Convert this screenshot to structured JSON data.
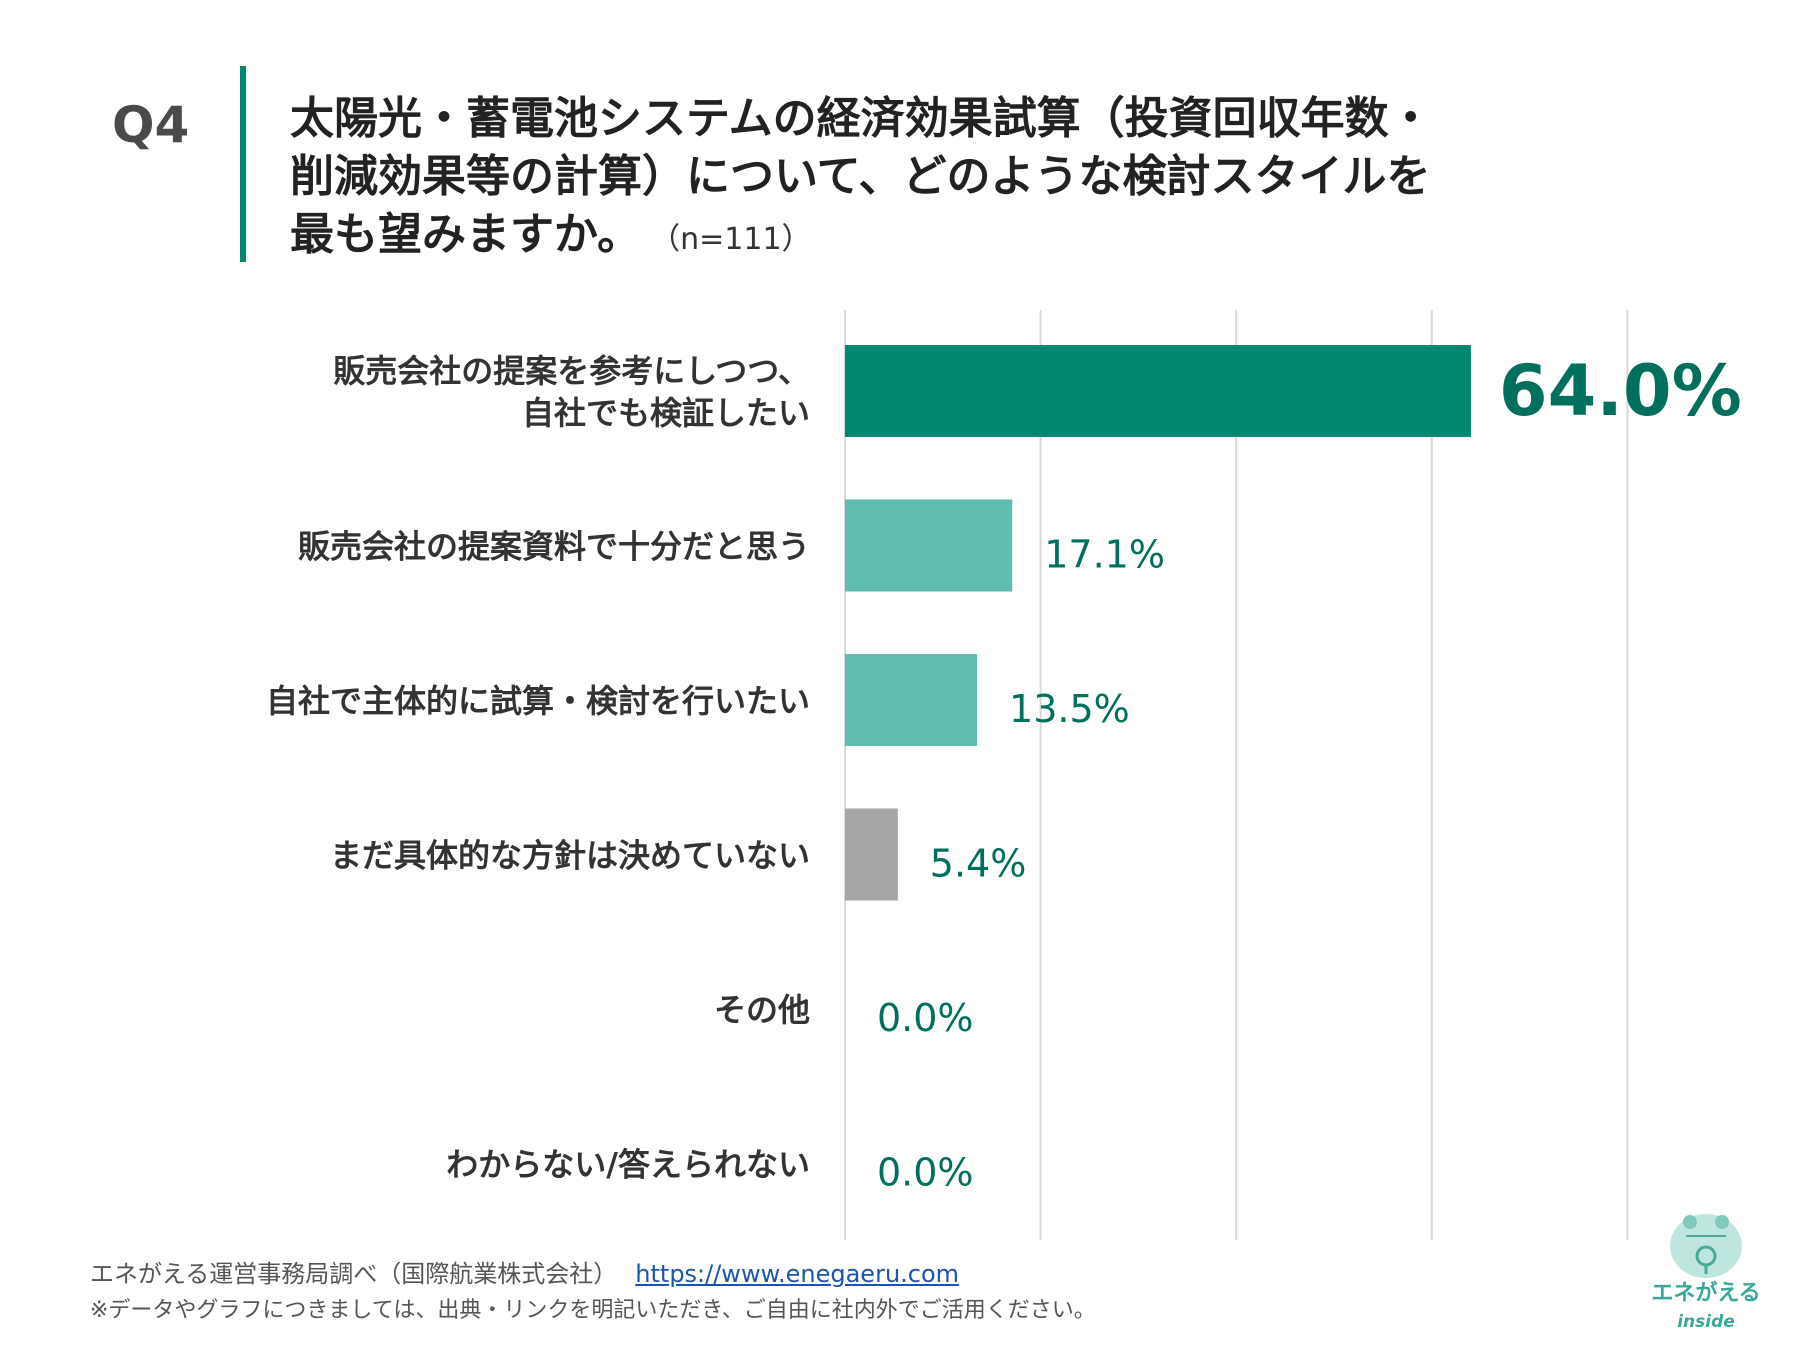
{
  "question": {
    "number": "Q4",
    "title_lines": [
      "太陽光・蓄電池システムの経済効果試算（投資回収年数・",
      "削減効果等の計算）について、どのような検討スタイルを",
      "最も望みますか。"
    ],
    "sample": "（n=111）"
  },
  "chart_data": {
    "type": "bar",
    "orientation": "horizontal",
    "title": "太陽光・蓄電池システムの経済効果試算（投資回収年数・削減効果等の計算）について、どのような検討スタイルを最も望みますか。",
    "categories": [
      [
        "販売会社の提案を参考にしつつ、",
        "自社でも検証したい"
      ],
      [
        "販売会社の提案資料で十分だと思う"
      ],
      [
        "自社で主体的に試算・検討を行いたい"
      ],
      [
        "まだ具体的な方針は決めていない"
      ],
      [
        "その他"
      ],
      [
        "わからない/答えられない"
      ]
    ],
    "values": [
      64.0,
      17.1,
      13.5,
      5.4,
      0.0,
      0.0
    ],
    "labels": [
      "64.0%",
      "17.1%",
      "13.5%",
      "5.4%",
      "0.0%",
      "0.0%"
    ],
    "colors": [
      "#00876f",
      "#5fbcb0",
      "#5fbcb0",
      "#a6a6a6",
      "#5fbcb0",
      "#5fbcb0"
    ],
    "label_color": "#00705c",
    "xlim": [
      0,
      80
    ],
    "grid": true,
    "xlabel": "",
    "ylabel": ""
  },
  "footer": {
    "source": "エネがえる運営事務局調べ（国際航業株式会社）",
    "link": "https://www.enegaeru.com",
    "note": "※データやグラフにつきましては、出典・リンクを明記いただき、ご自由に社内外でご活用ください。"
  },
  "logo": {
    "name": "エネがえる",
    "sub": "inside"
  }
}
